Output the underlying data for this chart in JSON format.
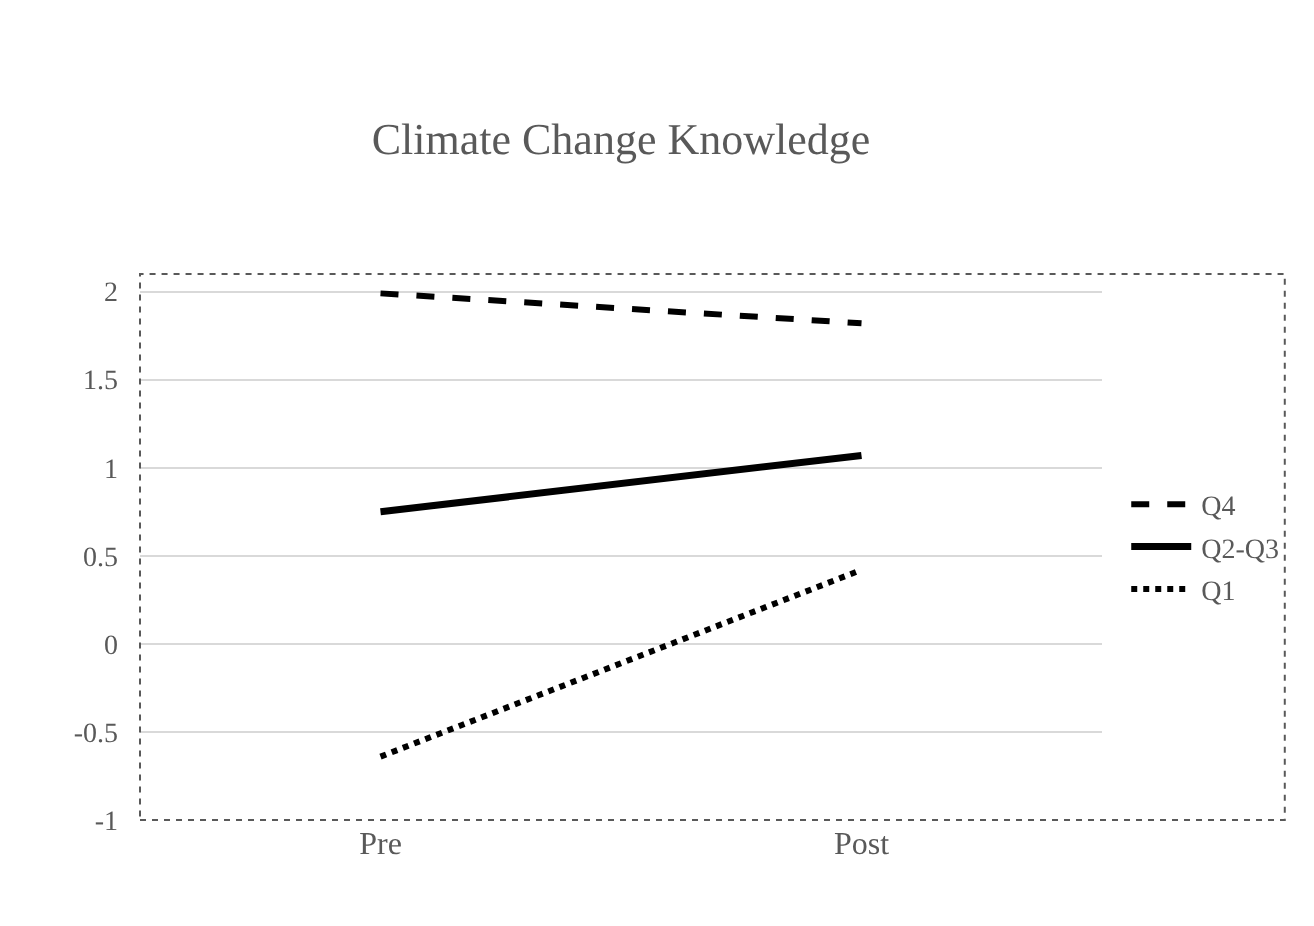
{
  "chart_data": {
    "type": "line",
    "title": "Climate Change Knowledge",
    "categories": [
      "Pre",
      "Post"
    ],
    "series": [
      {
        "name": "Q4",
        "color": "#000000",
        "line_style": "dashed",
        "values": [
          1.99,
          1.82
        ]
      },
      {
        "name": "Q2-Q3",
        "color": "#000000",
        "line_style": "solid",
        "values": [
          0.75,
          1.07
        ]
      },
      {
        "name": "Q1",
        "color": "#000000",
        "line_style": "dotted",
        "values": [
          -0.64,
          0.42
        ]
      }
    ],
    "ylim": [
      -1,
      2.1
    ],
    "yticks": [
      -1,
      -0.5,
      0,
      0.5,
      1,
      1.5,
      2
    ],
    "grid": "y",
    "legend": "right",
    "marker": "none"
  }
}
